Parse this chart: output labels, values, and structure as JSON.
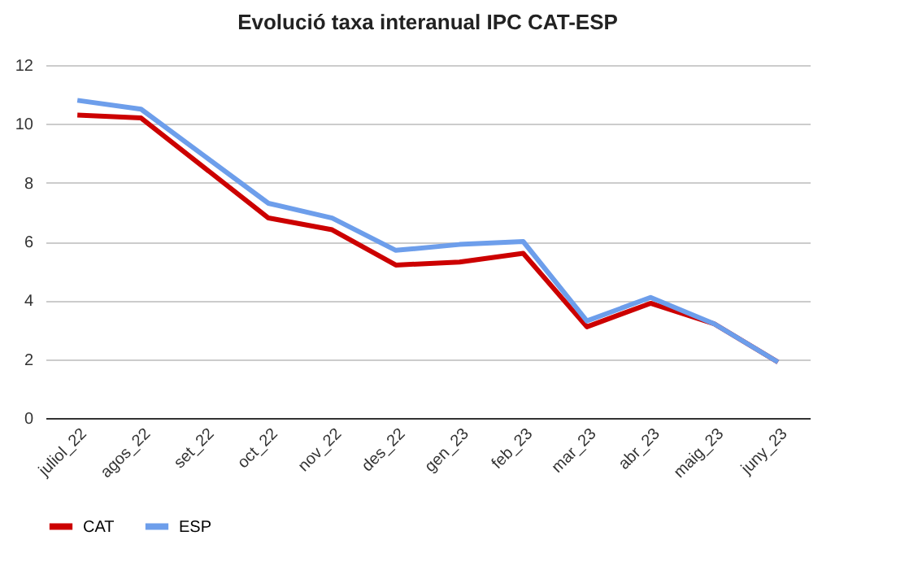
{
  "chart_data": {
    "type": "line",
    "title": "Evolució taxa interanual IPC CAT-ESP",
    "categories": [
      "juliol_22",
      "agos_22",
      "set_22",
      "oct_22",
      "nov_22",
      "des_22",
      "gen_23",
      "feb_23",
      "mar_23",
      "abr_23",
      "maig_23",
      "juny_23"
    ],
    "series": [
      {
        "name": "CAT",
        "color": "#cc0000",
        "values": [
          10.3,
          10.2,
          8.5,
          6.8,
          6.4,
          5.2,
          5.3,
          5.6,
          3.1,
          3.9,
          3.2,
          1.9
        ]
      },
      {
        "name": "ESP",
        "color": "#6d9eeb",
        "values": [
          10.8,
          10.5,
          8.9,
          7.3,
          6.8,
          5.7,
          5.9,
          6.0,
          3.3,
          4.1,
          3.2,
          1.9
        ]
      }
    ],
    "ylim": [
      0,
      12
    ],
    "yticks": [
      0,
      2,
      4,
      6,
      8,
      10,
      12
    ],
    "grid": "y",
    "legend": "bottom"
  }
}
